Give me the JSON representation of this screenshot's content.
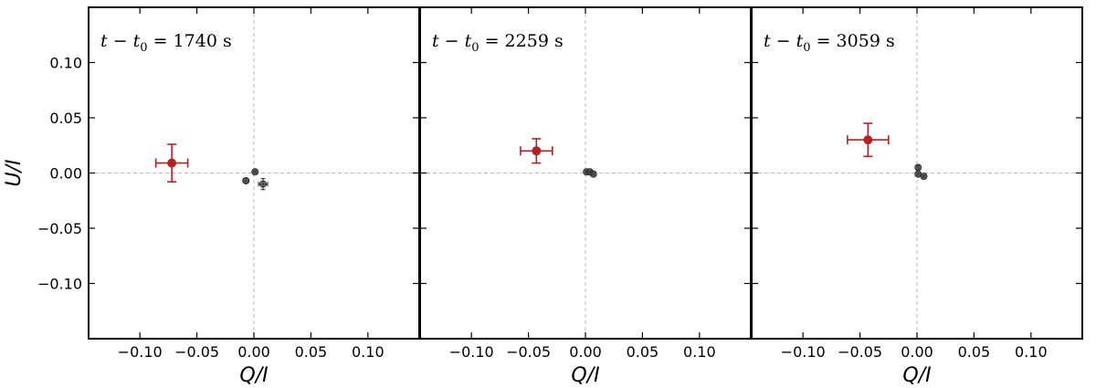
{
  "chart_data": [
    {
      "type": "scatter",
      "annotation": {
        "lhs": "t",
        "minus": "−",
        "t0": "t",
        "t0_sub": "0",
        "equals": "=",
        "value": "1740",
        "unit": "s"
      },
      "xlabel": "Q/I",
      "ylabel": "U/I",
      "xlim": [
        -0.145,
        0.145
      ],
      "ylim": [
        -0.15,
        0.15
      ],
      "xticks": [
        -0.1,
        -0.05,
        0.0,
        0.05,
        0.1
      ],
      "xtick_labels": [
        "−0.10",
        "−0.05",
        "0.00",
        "0.05",
        "0.10"
      ],
      "yticks": [
        0.1,
        0.05,
        0.0,
        -0.05,
        -0.1
      ],
      "ytick_labels": [
        "0.10",
        "0.05",
        "0.00",
        "−0.05",
        "−0.10"
      ],
      "show_yticklabels": true,
      "show_ylabel": true,
      "grid": "dashed zero lines",
      "series": [
        {
          "color": "#b22222",
          "points": [
            {
              "x": -0.072,
              "y": 0.009,
              "xerr": 0.014,
              "yerr": 0.017
            }
          ]
        },
        {
          "color": "#444444",
          "points": [
            {
              "x": -0.007,
              "y": -0.007,
              "xerr": 0.002,
              "yerr": 0.002
            },
            {
              "x": 0.001,
              "y": 0.001,
              "xerr": 0.001,
              "yerr": 0.001
            },
            {
              "x": 0.008,
              "y": -0.01,
              "xerr": 0.004,
              "yerr": 0.005
            }
          ]
        }
      ]
    },
    {
      "type": "scatter",
      "annotation": {
        "lhs": "t",
        "minus": "−",
        "t0": "t",
        "t0_sub": "0",
        "equals": "=",
        "value": "2259",
        "unit": "s"
      },
      "xlabel": "Q/I",
      "ylabel": "",
      "xlim": [
        -0.145,
        0.145
      ],
      "ylim": [
        -0.15,
        0.15
      ],
      "xticks": [
        -0.1,
        -0.05,
        0.0,
        0.05,
        0.1
      ],
      "xtick_labels": [
        "−0.10",
        "−0.05",
        "0.00",
        "0.05",
        "0.10"
      ],
      "yticks": [
        0.1,
        0.05,
        0.0,
        -0.05,
        -0.1
      ],
      "ytick_labels": [],
      "show_yticklabels": false,
      "show_ylabel": false,
      "grid": "dashed zero lines",
      "series": [
        {
          "color": "#b22222",
          "points": [
            {
              "x": -0.043,
              "y": 0.02,
              "xerr": 0.014,
              "yerr": 0.011
            }
          ]
        },
        {
          "color": "#444444",
          "points": [
            {
              "x": 0.001,
              "y": 0.001,
              "xerr": 0.001,
              "yerr": 0.001
            },
            {
              "x": 0.004,
              "y": 0.001,
              "xerr": 0.001,
              "yerr": 0.001
            },
            {
              "x": 0.007,
              "y": -0.001,
              "xerr": 0.001,
              "yerr": 0.001
            }
          ]
        }
      ]
    },
    {
      "type": "scatter",
      "annotation": {
        "lhs": "t",
        "minus": "−",
        "t0": "t",
        "t0_sub": "0",
        "equals": "=",
        "value": "3059",
        "unit": "s"
      },
      "xlabel": "Q/I",
      "ylabel": "",
      "xlim": [
        -0.145,
        0.145
      ],
      "ylim": [
        -0.15,
        0.15
      ],
      "xticks": [
        -0.1,
        -0.05,
        0.0,
        0.05,
        0.1
      ],
      "xtick_labels": [
        "−0.10",
        "−0.05",
        "0.00",
        "0.05",
        "0.10"
      ],
      "yticks": [
        0.1,
        0.05,
        0.0,
        -0.05,
        -0.1
      ],
      "ytick_labels": [],
      "show_yticklabels": false,
      "show_ylabel": false,
      "grid": "dashed zero lines",
      "series": [
        {
          "color": "#b22222",
          "points": [
            {
              "x": -0.043,
              "y": 0.03,
              "xerr": 0.018,
              "yerr": 0.015
            }
          ]
        },
        {
          "color": "#444444",
          "points": [
            {
              "x": 0.001,
              "y": 0.005,
              "xerr": 0.001,
              "yerr": 0.002
            },
            {
              "x": 0.001,
              "y": -0.001,
              "xerr": 0.001,
              "yerr": 0.001
            },
            {
              "x": 0.006,
              "y": -0.003,
              "xerr": 0.001,
              "yerr": 0.001
            }
          ]
        }
      ]
    }
  ]
}
